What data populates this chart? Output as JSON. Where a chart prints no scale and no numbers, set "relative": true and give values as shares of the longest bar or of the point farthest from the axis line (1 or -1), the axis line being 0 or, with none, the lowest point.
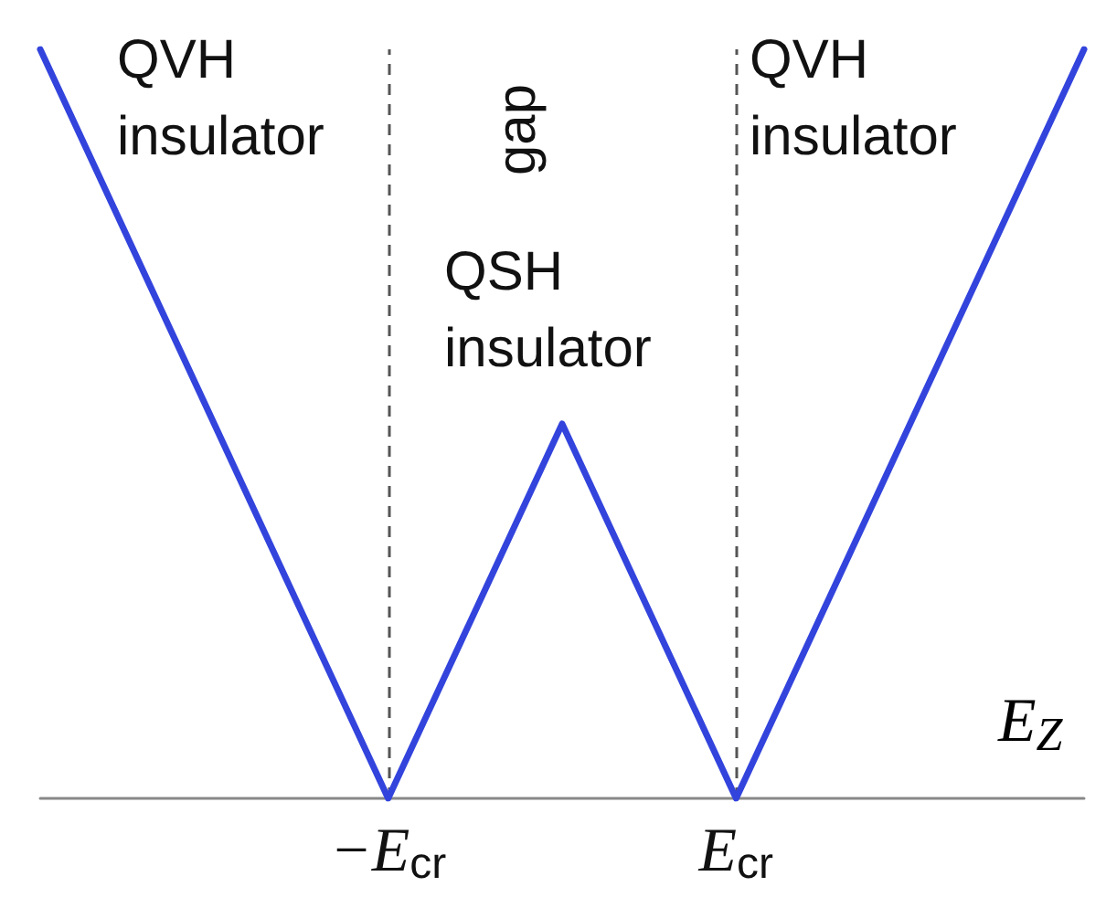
{
  "chart_data": {
    "type": "line",
    "relative": true,
    "xlabel": "E$_{Z}$",
    "ylabel": "gap",
    "categories": [
      null,
      null,
      "−E$_{cr}$",
      null,
      "E$_{cr}$",
      null,
      null
    ],
    "series": [
      {
        "color": "#3344dd",
        "values": [
          1,
          null,
          0,
          0.5,
          0,
          null,
          1
        ]
      }
    ],
    "ref_lines": [
      {
        "axis": "x",
        "value": "−E$_{cr}$",
        "color": "#555555",
        "line_style": "dashed"
      },
      {
        "axis": "x",
        "value": "E$_{cr}$",
        "color": "#555555",
        "line_style": "dashed"
      }
    ],
    "annotations": [
      "QVH insulator",
      "QSH insulator",
      "QVH insulator"
    ],
    "marker": "none",
    "line_style": "solid",
    "grid": false
  }
}
